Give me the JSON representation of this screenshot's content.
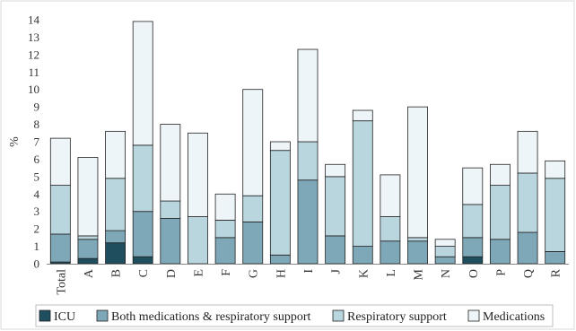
{
  "chart_data": {
    "type": "bar",
    "stacked": true,
    "title": "",
    "xlabel": "",
    "ylabel": "%",
    "ylim": [
      0,
      14
    ],
    "yticks": [
      0,
      1,
      2,
      3,
      4,
      5,
      6,
      7,
      8,
      9,
      10,
      11,
      12,
      13,
      14
    ],
    "grid": false,
    "legend_position": "bottom",
    "categories": [
      "Total",
      "A",
      "B",
      "C",
      "D",
      "E",
      "F",
      "G",
      "H",
      "I",
      "J",
      "K",
      "L",
      "M",
      "N",
      "O",
      "P",
      "Q",
      "R"
    ],
    "series": [
      {
        "name": "ICU",
        "color": "#1f4e5f",
        "values": [
          0.1,
          0.3,
          1.2,
          0.4,
          0,
          0,
          0,
          0,
          0,
          0,
          0,
          0,
          0,
          0,
          0,
          0.4,
          0,
          0,
          0
        ]
      },
      {
        "name": "Both medications & respiratory support",
        "color": "#7ea8b7",
        "values": [
          1.6,
          1.1,
          0.7,
          2.6,
          2.6,
          0,
          1.5,
          2.4,
          0.5,
          4.8,
          1.6,
          1.0,
          1.3,
          1.3,
          0.4,
          1.1,
          1.4,
          1.8,
          0.7
        ]
      },
      {
        "name": "Respiratory support",
        "color": "#b9d6df",
        "values": [
          2.8,
          0.2,
          3.0,
          3.8,
          1.0,
          2.7,
          1.0,
          1.5,
          6.0,
          2.2,
          3.4,
          7.2,
          1.4,
          0.2,
          0.6,
          1.9,
          3.1,
          3.4,
          4.2
        ]
      },
      {
        "name": "Medications",
        "color": "#eef5f8",
        "values": [
          2.7,
          4.5,
          2.7,
          7.1,
          4.4,
          4.8,
          1.5,
          6.1,
          0.5,
          5.3,
          0.7,
          0.6,
          2.4,
          7.5,
          0.4,
          2.1,
          1.2,
          2.4,
          1.0
        ]
      }
    ]
  }
}
